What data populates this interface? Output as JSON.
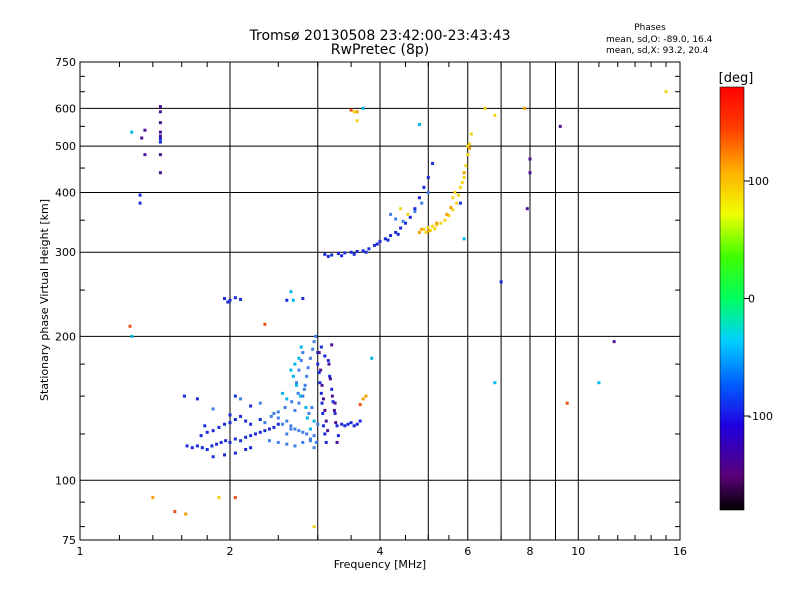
{
  "chart_data": {
    "type": "scatter",
    "title": "Tromsø 20130508 23:42:00-23:43:43",
    "subtitle": "RwPretec (8p)",
    "xlabel": "Frequency [MHz]",
    "ylabel": "Stationary phase Virtual Height [km]",
    "x_scale": "log",
    "y_scale": "log",
    "xlim": [
      1,
      16
    ],
    "ylim": [
      75,
      750
    ],
    "x_ticks": [
      1,
      2,
      4,
      6,
      8,
      10,
      16
    ],
    "y_ticks": [
      75,
      100,
      200,
      300,
      400,
      500,
      600,
      750
    ],
    "x_gridlines": [
      2,
      3,
      4,
      5,
      6,
      7,
      8,
      9,
      10
    ],
    "y_gridlines": [
      100,
      200,
      300,
      400,
      500,
      600
    ],
    "grid": true,
    "stats_header": "Phases",
    "stats_lines": [
      "mean, sd,O: -89.0, 16.4",
      "mean, sd,X:  93.2, 20.4"
    ],
    "colorbar": {
      "label": "[deg]",
      "ticks": [
        100,
        0,
        -100
      ],
      "range": [
        -180,
        180
      ],
      "colors": [
        "#000000",
        "#5a0078",
        "#2000e0",
        "#0060ff",
        "#00d0ff",
        "#00ff60",
        "#40ff00",
        "#f0ff00",
        "#ffb000",
        "#ff4000",
        "#ff0000"
      ]
    },
    "series": [
      {
        "color": "#1a2bd8",
        "points": [
          [
            1.64,
            118
          ],
          [
            1.68,
            117
          ],
          [
            1.72,
            118
          ],
          [
            1.76,
            117
          ],
          [
            1.8,
            116
          ],
          [
            1.84,
            118
          ],
          [
            1.88,
            119
          ],
          [
            1.92,
            120
          ],
          [
            1.96,
            121
          ],
          [
            2.0,
            120
          ],
          [
            2.05,
            122
          ],
          [
            2.1,
            121
          ],
          [
            2.15,
            123
          ],
          [
            2.2,
            124
          ],
          [
            2.25,
            125
          ],
          [
            2.3,
            126
          ],
          [
            2.35,
            127
          ],
          [
            2.4,
            128
          ],
          [
            2.45,
            129
          ],
          [
            2.5,
            131
          ],
          [
            1.75,
            124
          ],
          [
            1.8,
            126
          ],
          [
            1.85,
            127
          ],
          [
            1.9,
            129
          ],
          [
            1.95,
            131
          ],
          [
            2.0,
            132
          ],
          [
            2.05,
            134
          ],
          [
            2.1,
            136
          ],
          [
            2.15,
            133
          ],
          [
            2.2,
            131
          ],
          [
            2.3,
            134
          ],
          [
            1.85,
            112
          ],
          [
            1.95,
            113
          ],
          [
            2.05,
            114
          ],
          [
            2.15,
            116
          ],
          [
            2.2,
            117
          ],
          [
            3.0,
            185
          ],
          [
            3.0,
            175
          ],
          [
            3.02,
            168
          ],
          [
            3.03,
            160
          ],
          [
            3.05,
            152
          ],
          [
            3.06,
            145
          ],
          [
            3.07,
            138
          ],
          [
            3.08,
            130
          ],
          [
            3.1,
            125
          ],
          [
            3.12,
            120
          ],
          [
            3.15,
            178
          ],
          [
            3.17,
            165
          ],
          [
            3.2,
            155
          ],
          [
            3.22,
            146
          ],
          [
            3.25,
            138
          ],
          [
            3.28,
            130
          ],
          [
            3.3,
            124
          ],
          [
            3.05,
            190
          ],
          [
            3.1,
            182
          ],
          [
            3.35,
            131
          ],
          [
            3.4,
            130
          ],
          [
            3.45,
            131
          ],
          [
            3.5,
            132
          ],
          [
            3.55,
            130
          ],
          [
            3.6,
            131
          ],
          [
            3.65,
            133
          ],
          [
            3.1,
            297
          ],
          [
            3.2,
            296
          ],
          [
            3.3,
            298
          ],
          [
            3.4,
            299
          ],
          [
            3.5,
            300
          ],
          [
            3.6,
            301
          ],
          [
            3.7,
            302
          ],
          [
            3.8,
            305
          ],
          [
            3.9,
            310
          ],
          [
            4.0,
            316
          ],
          [
            4.1,
            320
          ],
          [
            4.2,
            325
          ],
          [
            4.3,
            330
          ],
          [
            4.4,
            337
          ],
          [
            4.5,
            345
          ],
          [
            4.6,
            355
          ],
          [
            4.7,
            370
          ],
          [
            4.8,
            390
          ],
          [
            4.9,
            410
          ],
          [
            5.0,
            430
          ],
          [
            5.1,
            460
          ],
          [
            3.15,
            294
          ],
          [
            3.35,
            295
          ],
          [
            3.55,
            297
          ],
          [
            3.75,
            300
          ],
          [
            3.95,
            312
          ],
          [
            4.15,
            318
          ],
          [
            4.35,
            327
          ],
          [
            1.95,
            240
          ],
          [
            2.0,
            238
          ],
          [
            2.05,
            241
          ],
          [
            2.1,
            239
          ],
          [
            1.98,
            236
          ],
          [
            2.6,
            238
          ],
          [
            2.8,
            240
          ],
          [
            1.62,
            150
          ],
          [
            1.72,
            148
          ],
          [
            2.05,
            150
          ],
          [
            2.2,
            143
          ],
          [
            2.0,
            137
          ],
          [
            1.45,
            518
          ],
          [
            1.45,
            510
          ],
          [
            1.32,
            395
          ],
          [
            1.32,
            380
          ],
          [
            5.8,
            380
          ],
          [
            7.0,
            260
          ],
          [
            1.78,
            130
          ]
        ]
      },
      {
        "color": "#3f7fe6",
        "points": [
          [
            2.55,
            131
          ],
          [
            2.6,
            133
          ],
          [
            2.65,
            130
          ],
          [
            2.7,
            128
          ],
          [
            2.75,
            127
          ],
          [
            2.8,
            126
          ],
          [
            2.85,
            125
          ],
          [
            2.9,
            122
          ],
          [
            2.95,
            124
          ],
          [
            2.5,
            135
          ],
          [
            2.45,
            138
          ],
          [
            2.7,
            140
          ],
          [
            2.75,
            145
          ],
          [
            2.8,
            150
          ],
          [
            2.83,
            158
          ],
          [
            2.85,
            165
          ],
          [
            2.87,
            172
          ],
          [
            2.9,
            180
          ],
          [
            2.93,
            188
          ],
          [
            2.95,
            195
          ],
          [
            2.97,
            200
          ],
          [
            2.72,
            160
          ],
          [
            2.75,
            170
          ],
          [
            2.78,
            178
          ],
          [
            2.8,
            185
          ],
          [
            2.82,
            155
          ],
          [
            2.88,
            138
          ],
          [
            2.92,
            142
          ],
          [
            2.4,
            121
          ],
          [
            2.5,
            120
          ],
          [
            2.6,
            119
          ],
          [
            2.7,
            118
          ],
          [
            2.8,
            120
          ],
          [
            2.9,
            121
          ],
          [
            2.35,
            132
          ],
          [
            2.42,
            136
          ],
          [
            2.5,
            139
          ],
          [
            2.58,
            142
          ],
          [
            2.66,
            146
          ],
          [
            2.74,
            152
          ],
          [
            3.0,
            131
          ],
          [
            2.98,
            120
          ],
          [
            2.95,
            117
          ],
          [
            2.6,
            125
          ],
          [
            2.65,
            128
          ],
          [
            4.2,
            360
          ],
          [
            4.3,
            352
          ],
          [
            4.45,
            348
          ],
          [
            4.7,
            365
          ],
          [
            4.85,
            380
          ],
          [
            5.0,
            400
          ],
          [
            1.85,
            141
          ],
          [
            2.1,
            148
          ],
          [
            2.3,
            145
          ]
        ]
      },
      {
        "color": "#00b8e8",
        "points": [
          [
            2.65,
            170
          ],
          [
            2.7,
            175
          ],
          [
            2.75,
            180
          ],
          [
            2.78,
            190
          ],
          [
            2.68,
            165
          ],
          [
            2.72,
            158
          ],
          [
            2.77,
            150
          ],
          [
            2.84,
            142
          ],
          [
            2.86,
            135
          ],
          [
            2.9,
            128
          ],
          [
            2.95,
            133
          ],
          [
            2.6,
            148
          ],
          [
            2.55,
            152
          ],
          [
            2.68,
            238
          ],
          [
            2.65,
            248
          ],
          [
            1.27,
            200
          ],
          [
            6.8,
            160
          ],
          [
            11.0,
            160
          ],
          [
            1.27,
            535
          ],
          [
            4.8,
            555
          ],
          [
            5.9,
            320
          ],
          [
            3.7,
            600
          ],
          [
            3.85,
            180
          ]
        ]
      },
      {
        "color": "#4b1294",
        "points": [
          [
            3.02,
            185
          ],
          [
            3.04,
            170
          ],
          [
            3.06,
            158
          ],
          [
            3.08,
            148
          ],
          [
            3.1,
            140
          ],
          [
            3.12,
            133
          ],
          [
            3.14,
            127
          ],
          [
            3.16,
            175
          ],
          [
            3.18,
            163
          ],
          [
            3.21,
            150
          ],
          [
            3.24,
            140
          ],
          [
            3.26,
            132
          ],
          [
            3.28,
            120
          ],
          [
            1.45,
            605
          ],
          [
            1.45,
            590
          ],
          [
            1.45,
            560
          ],
          [
            1.45,
            535
          ],
          [
            1.45,
            525
          ],
          [
            1.45,
            480
          ],
          [
            1.45,
            440
          ],
          [
            3.2,
            192
          ],
          [
            8.0,
            470
          ],
          [
            8.0,
            440
          ],
          [
            9.2,
            550
          ],
          [
            11.8,
            195
          ],
          [
            7.9,
            370
          ],
          [
            1.35,
            540
          ],
          [
            1.33,
            520
          ],
          [
            1.35,
            480
          ],
          [
            3.25,
            145
          ]
        ]
      },
      {
        "color": "#f2d51a",
        "points": [
          [
            4.9,
            335
          ],
          [
            5.0,
            338
          ],
          [
            5.1,
            340
          ],
          [
            5.2,
            342
          ],
          [
            5.3,
            345
          ],
          [
            5.4,
            350
          ],
          [
            5.5,
            358
          ],
          [
            5.6,
            368
          ],
          [
            5.7,
            380
          ],
          [
            5.75,
            395
          ],
          [
            5.8,
            410
          ],
          [
            5.9,
            430
          ],
          [
            5.95,
            455
          ],
          [
            6.0,
            480
          ],
          [
            6.05,
            505
          ],
          [
            6.1,
            530
          ],
          [
            4.95,
            330
          ],
          [
            5.05,
            333
          ],
          [
            5.15,
            336
          ],
          [
            5.6,
            390
          ],
          [
            5.65,
            400
          ],
          [
            5.85,
            420
          ],
          [
            6.0,
            500
          ],
          [
            3.55,
            590
          ],
          [
            3.6,
            565
          ],
          [
            6.5,
            600
          ],
          [
            6.8,
            580
          ],
          [
            15.0,
            650
          ],
          [
            1.9,
            92
          ],
          [
            2.95,
            80
          ],
          [
            4.4,
            370
          ],
          [
            4.55,
            360
          ]
        ]
      },
      {
        "color": "#f5a000",
        "points": [
          [
            4.8,
            330
          ],
          [
            4.85,
            335
          ],
          [
            5.0,
            332
          ],
          [
            5.2,
            345
          ],
          [
            5.45,
            360
          ],
          [
            5.55,
            372
          ],
          [
            5.9,
            440
          ],
          [
            6.05,
            495
          ],
          [
            1.4,
            92
          ],
          [
            1.63,
            85
          ],
          [
            3.6,
            590
          ],
          [
            7.8,
            600
          ],
          [
            3.7,
            148
          ],
          [
            3.75,
            150
          ]
        ]
      },
      {
        "color": "#e85010",
        "points": [
          [
            1.26,
            210
          ],
          [
            2.35,
            212
          ],
          [
            1.55,
            86
          ],
          [
            2.05,
            92
          ],
          [
            3.65,
            144
          ],
          [
            9.5,
            145
          ],
          [
            3.5,
            595
          ]
        ]
      }
    ]
  }
}
